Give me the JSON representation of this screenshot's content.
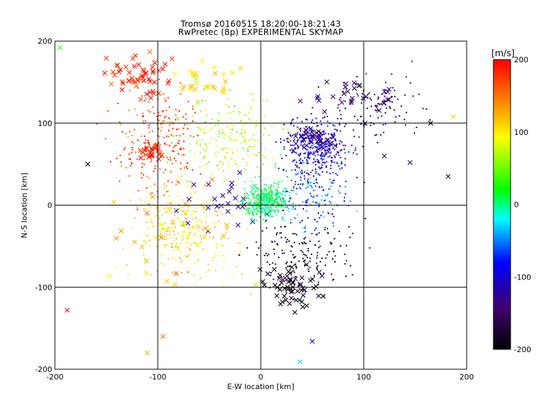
{
  "chart_data": {
    "type": "scatter",
    "title": "Tromsø 20160515 18:20:00-18:21:43",
    "subtitle": "RwPretec (8p) EXPERIMENTAL SKYMAP",
    "xlabel": "E-W location [km]",
    "ylabel": "N-S location [km]",
    "xlim": [
      -200,
      200
    ],
    "ylim": [
      -200,
      200
    ],
    "x_ticks": [
      -200,
      -100,
      0,
      100,
      200
    ],
    "y_ticks": [
      -200,
      -100,
      0,
      100,
      200
    ],
    "x_tick_labels": [
      "-200",
      "-100",
      "0",
      "100",
      "200"
    ],
    "y_tick_labels": [
      "-200",
      "-100",
      "0",
      "100",
      "200"
    ],
    "grid": true,
    "colorbar": {
      "label": "[m/s]",
      "range": [
        -200,
        200
      ],
      "ticks": [
        200,
        100,
        0,
        -100,
        -200
      ],
      "tick_labels": [
        "200",
        "100",
        "0",
        "-100",
        "-200"
      ],
      "colors": [
        "#000000",
        "#40006a",
        "#0000ff",
        "#00ffff",
        "#00ff00",
        "#ffff00",
        "#ff8000",
        "#ff0000"
      ]
    },
    "clusters": [
      {
        "marker": "cross",
        "x": -120,
        "y": 155,
        "sx": 30,
        "sy": 25,
        "v": 190,
        "n": 55
      },
      {
        "marker": "cross",
        "x": -105,
        "y": 65,
        "sx": 10,
        "sy": 10,
        "v": 195,
        "n": 25
      },
      {
        "marker": "cross",
        "x": -50,
        "y": 150,
        "sx": 25,
        "sy": 20,
        "v": 105,
        "n": 30
      },
      {
        "marker": "cross",
        "x": 55,
        "y": 80,
        "sx": 20,
        "sy": 15,
        "v": -145,
        "n": 40
      },
      {
        "marker": "cross",
        "x": 90,
        "y": 130,
        "sx": 35,
        "sy": 20,
        "v": -150,
        "n": 30
      },
      {
        "marker": "cross",
        "x": 30,
        "y": -100,
        "sx": 25,
        "sy": 25,
        "v": -195,
        "n": 60
      },
      {
        "marker": "cross",
        "x": -40,
        "y": 0,
        "sx": 30,
        "sy": 35,
        "v": -120,
        "n": 25
      },
      {
        "marker": "cross",
        "x": -80,
        "y": -40,
        "sx": 60,
        "sy": 60,
        "v": 110,
        "n": 30
      },
      {
        "marker": "dot",
        "x": 5,
        "y": 5,
        "sx": 20,
        "sy": 18,
        "v": 5,
        "n": 450
      },
      {
        "marker": "dot",
        "x": 55,
        "y": 70,
        "sx": 28,
        "sy": 30,
        "v": -100,
        "n": 350
      },
      {
        "marker": "dot",
        "x": -100,
        "y": 80,
        "sx": 35,
        "sy": 60,
        "v": 170,
        "n": 250
      },
      {
        "marker": "dot",
        "x": -75,
        "y": -30,
        "sx": 45,
        "sy": 50,
        "v": 100,
        "n": 300
      },
      {
        "marker": "dot",
        "x": -30,
        "y": 80,
        "sx": 40,
        "sy": 45,
        "v": 70,
        "n": 200
      },
      {
        "marker": "dot",
        "x": 40,
        "y": -60,
        "sx": 45,
        "sy": 40,
        "v": -180,
        "n": 180
      },
      {
        "marker": "dot",
        "x": 50,
        "y": 10,
        "sx": 30,
        "sy": 35,
        "v": -60,
        "n": 150
      },
      {
        "marker": "dot",
        "x": 110,
        "y": 120,
        "sx": 40,
        "sy": 35,
        "v": -155,
        "n": 120
      }
    ],
    "outliers": [
      {
        "marker": "cross",
        "x": -168,
        "y": 50,
        "v": -200
      },
      {
        "marker": "cross",
        "x": 165,
        "y": 100,
        "v": -200
      },
      {
        "marker": "cross",
        "x": 182,
        "y": 35,
        "v": -200
      },
      {
        "marker": "cross",
        "x": -188,
        "y": -128,
        "v": 200
      },
      {
        "marker": "cross",
        "x": -110,
        "y": -180,
        "v": 120
      },
      {
        "marker": "cross",
        "x": -95,
        "y": -160,
        "v": 150
      },
      {
        "marker": "cross",
        "x": 50,
        "y": -166,
        "v": -100
      },
      {
        "marker": "cross",
        "x": 38,
        "y": -191,
        "v": -30
      },
      {
        "marker": "cross",
        "x": 145,
        "y": 52,
        "v": -150
      },
      {
        "marker": "cross",
        "x": 120,
        "y": 60,
        "v": -150
      },
      {
        "marker": "cross",
        "x": 187,
        "y": 108,
        "v": 110
      },
      {
        "marker": "cross",
        "x": -195,
        "y": 192,
        "v": 30
      }
    ]
  }
}
